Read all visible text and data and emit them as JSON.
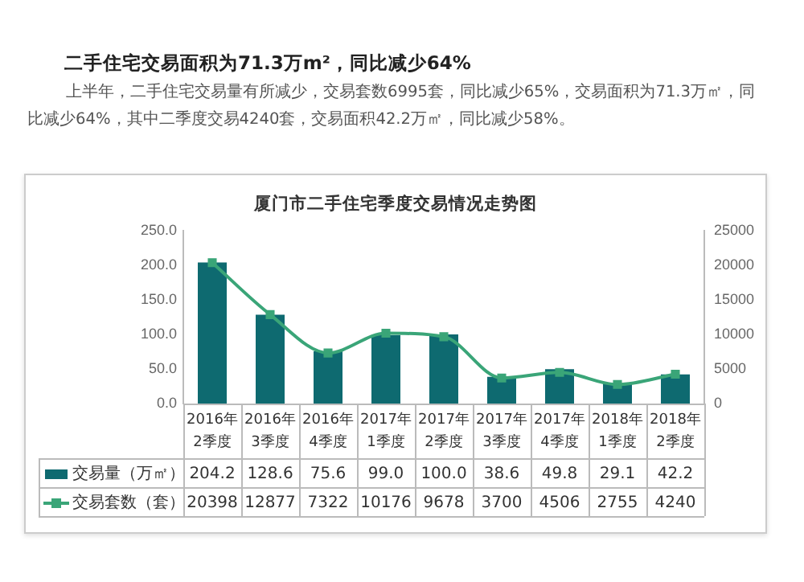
{
  "chart_data": {
    "type": "bar",
    "title": "厦门市二手住宅季度交易情况走势图",
    "annotations": [
      "二手住宅交易面积为71.3万m²，同比减少64%",
      "上半年，二手住宅交易量有所减少，交易套数6995套，同比减少65%，交易面积为71.3万㎡，同比减少64%，其中二季度交易4240套，交易面积42.2万㎡，同比减少58%。"
    ],
    "categories": [
      "2016年2季度",
      "2016年3季度",
      "2016年4季度",
      "2017年1季度",
      "2017年2季度",
      "2017年3季度",
      "2017年4季度",
      "2018年1季度",
      "2018年2季度"
    ],
    "series": [
      {
        "name": "交易量（万㎡）",
        "color": "#0e6a70",
        "values": [
          204.2,
          128.6,
          75.6,
          99.0,
          100.0,
          38.6,
          49.8,
          29.1,
          42.2
        ],
        "value_labels": [
          "204.2",
          "128.6",
          "75.6",
          "99.0",
          "100.0",
          "38.6",
          "49.8",
          "29.1",
          "42.2"
        ]
      },
      {
        "name": "交易套数（套）",
        "type": "line",
        "axis": "y2",
        "color": "#3aa578",
        "marker": "square",
        "values": [
          20398,
          12877,
          7322,
          10176,
          9678,
          3700,
          4506,
          2755,
          4240
        ],
        "value_labels": [
          "20398",
          "12877",
          "7322",
          "10176",
          "9678",
          "3700",
          "4506",
          "2755",
          "4240"
        ]
      }
    ],
    "ylim": [
      0,
      250
    ],
    "yticks": [
      {
        "value": 0,
        "label": "0.0"
      },
      {
        "value": 50,
        "label": "50.0"
      },
      {
        "value": 100,
        "label": "100.0"
      },
      {
        "value": 150,
        "label": "150.0"
      },
      {
        "value": 200,
        "label": "200.0"
      },
      {
        "value": 250,
        "label": "250.0"
      }
    ],
    "y2lim": [
      0,
      25000
    ],
    "y2ticks": [
      0,
      5000,
      10000,
      15000,
      20000,
      25000
    ],
    "grid": false,
    "legend": "bottom"
  }
}
